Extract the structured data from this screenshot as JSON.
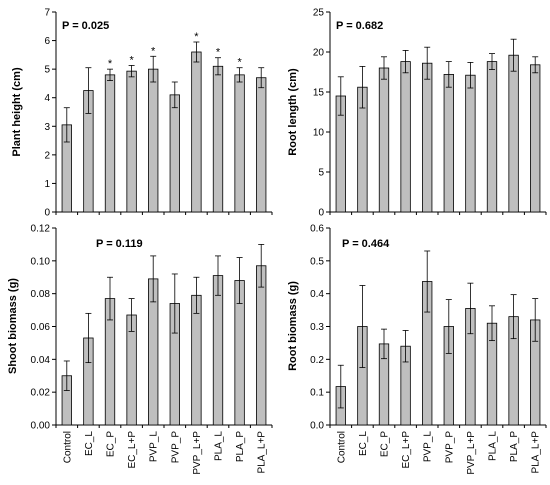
{
  "colors": {
    "bar_fill": "#bfbfbf",
    "bar_stroke": "#000000",
    "axis": "#000000"
  },
  "chart_data": [
    {
      "type": "bar",
      "categories": [
        "Control",
        "EC_L",
        "EC_P",
        "EC_L+P",
        "PVP_L",
        "PVP_P",
        "PVP_L+P",
        "PLA_L",
        "PLA_P",
        "PLA_L+P"
      ],
      "values": [
        3.05,
        4.25,
        4.8,
        4.93,
        5.0,
        4.1,
        5.6,
        5.1,
        4.8,
        4.7
      ],
      "errors": [
        0.6,
        0.8,
        0.2,
        0.2,
        0.45,
        0.45,
        0.35,
        0.3,
        0.25,
        0.35
      ],
      "significance": [
        "",
        "",
        "*",
        "*",
        "*",
        "",
        "*",
        "*",
        "*",
        ""
      ],
      "annotation": "P = 0.025",
      "ylabel": "Plant height (cm)",
      "ylim": [
        0,
        7
      ],
      "yticks": [
        "0",
        "1",
        "2",
        "3",
        "4",
        "5",
        "6",
        "7"
      ],
      "show_categories": false
    },
    {
      "type": "bar",
      "categories": [
        "Control",
        "EC_L",
        "EC_P",
        "EC_L+P",
        "PVP_L",
        "PVP_P",
        "PVP_L+P",
        "PLA_L",
        "PLA_P",
        "PLA_L+P"
      ],
      "values": [
        14.5,
        15.6,
        18.0,
        18.8,
        18.6,
        17.2,
        17.1,
        18.8,
        19.6,
        18.4
      ],
      "errors": [
        2.4,
        2.6,
        1.4,
        1.4,
        2.0,
        1.6,
        1.6,
        1.0,
        2.0,
        1.0
      ],
      "significance": [
        "",
        "",
        "",
        "",
        "",
        "",
        "",
        "",
        "",
        ""
      ],
      "annotation": "P = 0.682",
      "ylabel": "Root length (cm)",
      "ylim": [
        0,
        25
      ],
      "yticks": [
        "0",
        "5",
        "10",
        "15",
        "20",
        "25"
      ],
      "show_categories": false
    },
    {
      "type": "bar",
      "categories": [
        "Control",
        "EC_L",
        "EC_P",
        "EC_L+P",
        "PVP_L",
        "PVP_P",
        "PVP_L+P",
        "PLA_L",
        "PLA_P",
        "PLA_L+P"
      ],
      "values": [
        0.03,
        0.053,
        0.077,
        0.067,
        0.089,
        0.074,
        0.079,
        0.091,
        0.088,
        0.097
      ],
      "errors": [
        0.009,
        0.015,
        0.013,
        0.01,
        0.014,
        0.018,
        0.011,
        0.012,
        0.014,
        0.013
      ],
      "significance": [
        "",
        "",
        "",
        "",
        "",
        "",
        "",
        "",
        "",
        ""
      ],
      "annotation": "P = 0.119",
      "ylabel": "Shoot biomass (g)",
      "ylim": [
        0,
        0.12
      ],
      "yticks": [
        "0.00",
        "0.02",
        "0.04",
        "0.06",
        "0.08",
        "0.10",
        "0.12"
      ],
      "show_categories": true
    },
    {
      "type": "bar",
      "categories": [
        "Control",
        "EC_L",
        "EC_P",
        "EC_L+P",
        "PVP_L",
        "PVP_P",
        "PVP_L+P",
        "PLA_L",
        "PLA_P",
        "PLA_L+P"
      ],
      "values": [
        0.117,
        0.3,
        0.247,
        0.24,
        0.437,
        0.3,
        0.355,
        0.31,
        0.33,
        0.32
      ],
      "errors": [
        0.065,
        0.125,
        0.045,
        0.048,
        0.093,
        0.082,
        0.077,
        0.053,
        0.067,
        0.065
      ],
      "significance": [
        "",
        "",
        "",
        "",
        "",
        "",
        "",
        "",
        "",
        ""
      ],
      "annotation": "P = 0.464",
      "ylabel": "Root biomass (g)",
      "ylim": [
        0,
        0.6
      ],
      "yticks": [
        "0.0",
        "0.1",
        "0.2",
        "0.3",
        "0.4",
        "0.5",
        "0.6"
      ],
      "show_categories": true
    }
  ]
}
